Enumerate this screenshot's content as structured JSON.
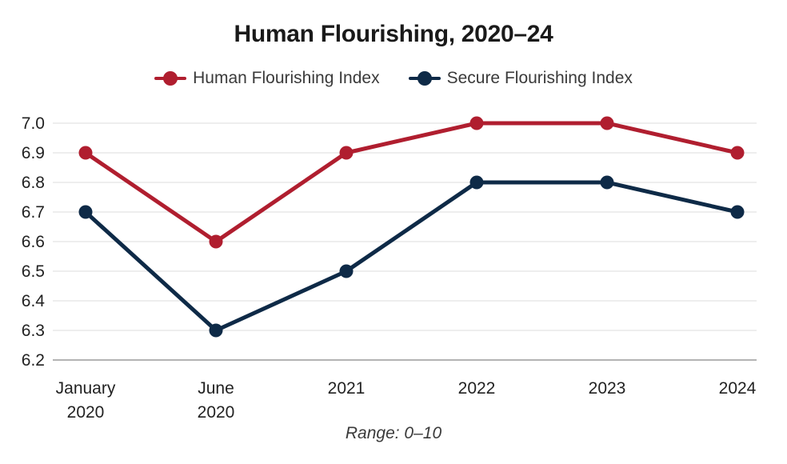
{
  "chart_data": {
    "type": "line",
    "title": "Human Flourishing, 2020–24",
    "categories": [
      [
        "January",
        "2020"
      ],
      [
        "June",
        "2020"
      ],
      [
        "2021"
      ],
      [
        "2022"
      ],
      [
        "2023"
      ],
      [
        "2024"
      ]
    ],
    "series": [
      {
        "name": "Human Flourishing Index",
        "color": "#b01e2f",
        "values": [
          6.9,
          6.6,
          6.9,
          7.0,
          7.0,
          6.9
        ]
      },
      {
        "name": "Secure Flourishing Index",
        "color": "#0e2a47",
        "values": [
          6.7,
          6.3,
          6.5,
          6.8,
          6.8,
          6.7
        ]
      }
    ],
    "y_ticks": [
      "6.2",
      "6.3",
      "6.4",
      "6.5",
      "6.6",
      "6.7",
      "6.8",
      "6.9",
      "7.0"
    ],
    "ylim": [
      6.2,
      7.0
    ],
    "grid": true,
    "legend_position": "top",
    "note": "Range: 0–10",
    "xlabel": "",
    "ylabel": ""
  }
}
